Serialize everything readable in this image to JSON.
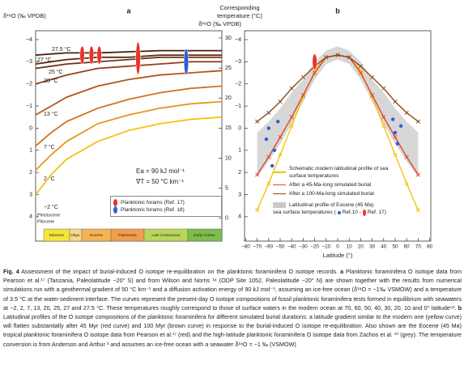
{
  "chart_data": [
    {
      "type": "line",
      "title": "a",
      "ylabel": "δ¹⁸O (‰ VPDB)",
      "y2label": [
        "Corresponding",
        "temperature (°C)"
      ],
      "xlim": [
        0,
        120
      ],
      "ylim": [
        -4.4,
        5.1
      ],
      "y_inverted": true,
      "yticks": [
        {
          "value": -4,
          "label": "−4"
        },
        {
          "value": -3,
          "label": "−3"
        },
        {
          "value": -2,
          "label": "−2"
        },
        {
          "value": -1,
          "label": "−1"
        },
        0,
        1,
        2,
        3,
        4
      ],
      "y2lim": [
        -3.8,
        31.2
      ],
      "y2ticks": [
        0,
        5,
        10,
        15,
        20,
        25,
        30
      ],
      "x": [
        0,
        10,
        20,
        40,
        60,
        80,
        100,
        120
      ],
      "series": [
        {
          "name": "27.5 °C",
          "color": "#4a2010",
          "values": [
            -3.3,
            -3.35,
            -3.4,
            -3.4,
            -3.45,
            -3.5,
            -3.5,
            -3.5
          ]
        },
        {
          "name": "27 °C",
          "color": "#5c2a12",
          "values": [
            -2.9,
            -3.0,
            -3.1,
            -3.2,
            -3.2,
            -3.3,
            -3.3,
            -3.3
          ]
        },
        {
          "name": "25 °C",
          "color": "#733416",
          "values": [
            -2.7,
            -2.8,
            -2.9,
            -3.0,
            -3.1,
            -3.2,
            -3.2,
            -3.2
          ]
        },
        {
          "name": "20 °C",
          "color": "#93421a",
          "values": [
            -2.0,
            -2.2,
            -2.4,
            -2.7,
            -2.8,
            -2.9,
            -3.0,
            -3.0
          ]
        },
        {
          "name": "13 °C",
          "color": "#b5551c",
          "values": [
            -0.6,
            -1.0,
            -1.4,
            -1.9,
            -2.2,
            -2.4,
            -2.5,
            -2.6
          ]
        },
        {
          "name": "7 °C",
          "color": "#d2711e",
          "values": [
            0.8,
            0.2,
            -0.3,
            -0.9,
            -1.3,
            -1.6,
            -1.8,
            -1.9
          ]
        },
        {
          "name": "2 °C",
          "color": "#e6981c",
          "values": [
            1.9,
            1.2,
            0.6,
            -0.2,
            -0.6,
            -0.9,
            -1.1,
            -1.2
          ]
        },
        {
          "name": "−2 °C",
          "color": "#f4c20f",
          "values": [
            3.0,
            2.1,
            1.4,
            0.6,
            0.1,
            -0.2,
            -0.4,
            -0.5
          ]
        }
      ],
      "scatter": [
        {
          "name": "Planktonic forams (Ref. 17)",
          "color": "#e8322a",
          "x": [
            30,
            36,
            41,
            66
          ],
          "values": [
            -3.3,
            -3.3,
            -3.3,
            -3.16
          ],
          "errors": [
            0.4,
            0.4,
            0.4,
            0.73
          ]
        },
        {
          "name": "Planktonic forams (Ref. 18)",
          "color": "#2a5fd6",
          "x": [
            97
          ],
          "values": [
            -3.0
          ],
          "errors": [
            0.58
          ]
        }
      ],
      "legend": "lower right",
      "annotations": [
        "Ea = 90 kJ mol⁻¹",
        "∇T = 50 °C km⁻¹",
        "Pleistocene",
        "Pliocene"
      ],
      "epochs": [
        {
          "name": "Miocene",
          "color": "#f5e43a"
        },
        {
          "name": "Oligo.",
          "color": "#f8d98a"
        },
        {
          "name": "Eocene",
          "color": "#f5b354"
        },
        {
          "name": "Paleocene",
          "color": "#f39c4e"
        },
        {
          "name": "Late Cretaceous",
          "color": "#b9d65a"
        },
        {
          "name": "Early Cretac.",
          "color": "#7dbd4c"
        }
      ]
    },
    {
      "type": "line",
      "title": "b",
      "ylabel": "δ¹⁸O (‰ VPDB)",
      "xlabel": "Latitude (°)",
      "xlim": [
        -81,
        81
      ],
      "ylim": [
        -4.4,
        5.1
      ],
      "y_inverted": true,
      "xticks": [
        {
          "value": -80,
          "label": "−80"
        },
        {
          "value": -70,
          "label": "−70"
        },
        {
          "value": -60,
          "label": "−60"
        },
        {
          "value": -50,
          "label": "−50"
        },
        {
          "value": -40,
          "label": "−40"
        },
        {
          "value": -30,
          "label": "−30"
        },
        {
          "value": -20,
          "label": "−20"
        },
        {
          "value": -10,
          "label": "−10"
        },
        0,
        10,
        20,
        30,
        40,
        50,
        60,
        70,
        80
      ],
      "yticks": [
        {
          "value": -4,
          "label": "−4"
        },
        {
          "value": -3,
          "label": "−3"
        },
        {
          "value": -2,
          "label": "−2"
        },
        {
          "value": -1,
          "label": "−1"
        },
        0,
        1,
        2,
        3,
        4
      ],
      "x": [
        -70,
        -60,
        -50,
        -40,
        -30,
        -20,
        -10,
        0,
        10,
        20,
        30,
        40,
        50,
        60,
        70
      ],
      "band": {
        "name": "Latitudinal profile of Eocene (45 Ma)",
        "color": "#c9c9c9",
        "low": [
          0.2,
          -0.3,
          -0.9,
          -1.6,
          -2.2,
          -3.0,
          -3.5,
          -3.7,
          -3.5,
          -3.0,
          -2.2,
          -1.6,
          -0.9,
          -0.3,
          0.2
        ],
        "high": [
          2.2,
          1.5,
          0.7,
          -0.2,
          -1.2,
          -2.2,
          -2.9,
          -3.1,
          -2.9,
          -2.2,
          -1.2,
          -0.2,
          0.7,
          1.5,
          2.2
        ]
      },
      "series": [
        {
          "name": "Schematic modern latitudinal profile of sea surface temperatures",
          "color": "#f4c20f",
          "values": [
            3.7,
            2.5,
            1.2,
            -0.1,
            -1.4,
            -2.6,
            -3.2,
            -3.3,
            -3.2,
            -2.6,
            -1.4,
            -0.1,
            1.2,
            2.5,
            3.7
          ]
        },
        {
          "name": "After a 45-Ma-long simulated burial",
          "color": "#e4452a",
          "values": [
            2.1,
            1.3,
            0.4,
            -0.5,
            -1.5,
            -2.5,
            -3.2,
            -3.3,
            -3.2,
            -2.5,
            -1.5,
            -0.5,
            0.4,
            1.3,
            2.1
          ]
        },
        {
          "name": "After a 100-Ma-long simulated burial",
          "color": "#8b4a1e",
          "values": [
            -0.3,
            -0.7,
            -1.2,
            -1.8,
            -2.3,
            -2.8,
            -3.2,
            -3.3,
            -3.2,
            -2.8,
            -2.3,
            -1.8,
            -1.2,
            -0.7,
            -0.3
          ]
        }
      ],
      "markers": "x",
      "legend_note": "sea surface temperatures (",
      "scatter": [
        {
          "name": "Ref.10 -",
          "color": "#2a5fd6",
          "x": [
            -62,
            -60,
            -57,
            -55,
            -52,
            48,
            50,
            52,
            55
          ],
          "values": [
            0.5,
            0.0,
            1.7,
            1.0,
            -0.3,
            -0.4,
            0.2,
            0.7,
            -0.1
          ]
        },
        {
          "name": "Ref. 17)",
          "color": "#e8322a",
          "x": [
            -20
          ],
          "values": [
            -3.0
          ],
          "errors": [
            0.35
          ]
        }
      ],
      "legend": "lower center"
    }
  ],
  "caption": [
    {
      "text": "Fig. 4",
      "bold": true
    },
    {
      "text": " Assessment of the impact of burial-induced O isotope re-equilibration on the planktonic foraminifera O isotope records. "
    },
    {
      "text": "a",
      "bold": true
    },
    {
      "text": " Planktonic foraminifera O isotope data from Pearson et al.¹⁷ (Tanzania, Paleolatitude ~20° S) and from Wilson and Norris ¹⁸ (ODP Site 1052, Paleolatitude ~20° N) are shown together with the results from numerical simulations run with a geothermal gradient of 50 °C km⁻¹ and a diffusion activation energy of 90 kJ mol⁻¹, assuming an ice-free ocean (δ¹⁸O = −1‰ VSMOW) and a temperature of 3.5 °C at the water-sediment interface. The curves represent the present-day O isotope compositions of fossil planktonic foraminifera tests formed in equilibrium with seawaters at −2, 2, 7, 13, 20, 25, 27 and 27.5 °C. These temperatures roughly correspond to those of surface waters in the modern ocean at 70, 60, 50, 40, 30, 20, 10 and 0° latitude⁵². "
    },
    {
      "text": "b",
      "bold": true
    },
    {
      "text": " Latitudinal profiles of the O isotope compositions of the planktonic foraminifera for different simulated burial durations: a latitude gradient similar to the modern one (yellow curve) will flatten substantially after 45 Myr (red curve) and 100 Myr (brown curve) in response to the burial-induced O isotope re-equilibration. Also shown are the Eocene (45 Ma) tropical planktonic foraminifera O isotope data from Pearson et al.¹⁷ (red) and the high-latitude planktonic foraminifera O isotope data from Zachos et al. ¹⁰ (grey). The temperature conversion is from Anderson and Arthur ³ and assumes an ice-free ocean with a seawater δ¹⁸O = −1 ‰ (VSMOW)"
    }
  ]
}
